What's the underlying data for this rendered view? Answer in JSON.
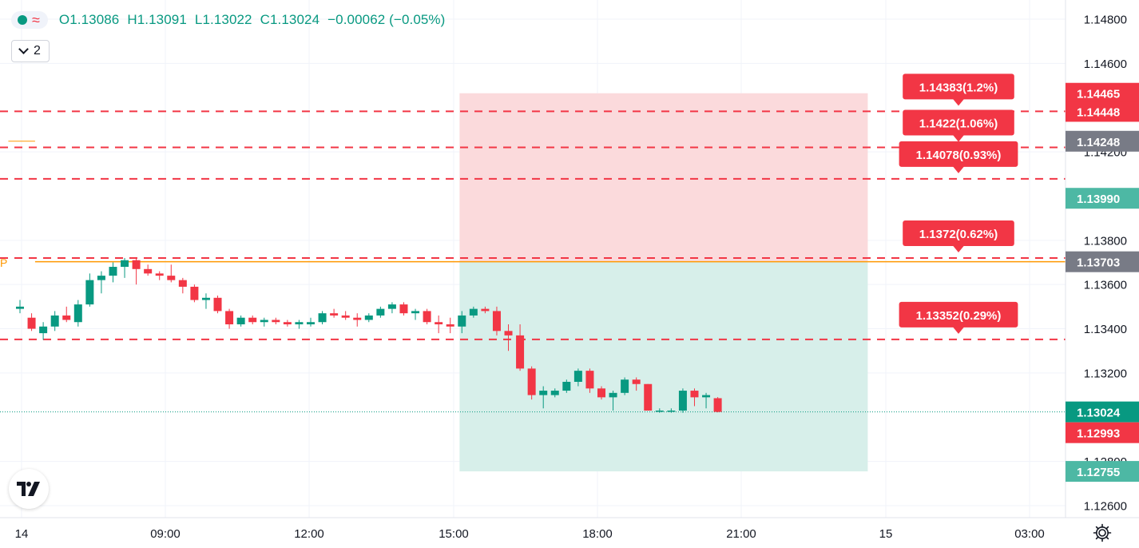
{
  "legend": {
    "open": "O1.13086",
    "high": "H1.13091",
    "low": "L1.13022",
    "close": "C1.13024",
    "change": "−0.00062 (−0.05%)",
    "collapse_count": "2"
  },
  "p_marker": "P",
  "colors": {
    "up": "#089981",
    "down": "#f23645",
    "orange": "#ff9800",
    "stop_zone": "#fbdadc",
    "target_zone": "#d7efea",
    "grid": "#f0f3fa",
    "gray_label": "#787b86"
  },
  "chart_data": {
    "type": "candlestick",
    "y_range": [
      1.1255,
      1.1485
    ],
    "y_ticks": [
      "1.12600",
      "1.12800",
      "1.13200",
      "1.13400",
      "1.13600",
      "1.13800",
      "1.14200",
      "1.14600",
      "1.14800"
    ],
    "x_ticks": [
      "14",
      "09:00",
      "12:00",
      "15:00",
      "18:00",
      "21:00",
      "15",
      "03:00"
    ],
    "candles": [
      [
        1.1349,
        1.1353,
        1.1347,
        1.135
      ],
      [
        1.1345,
        1.1347,
        1.1339,
        1.134
      ],
      [
        1.1338,
        1.1343,
        1.1335,
        1.1341
      ],
      [
        1.1341,
        1.1348,
        1.1339,
        1.1346
      ],
      [
        1.1346,
        1.135,
        1.1343,
        1.1344
      ],
      [
        1.1343,
        1.1353,
        1.1341,
        1.1351
      ],
      [
        1.1351,
        1.1365,
        1.135,
        1.1362
      ],
      [
        1.1362,
        1.1366,
        1.1356,
        1.1364
      ],
      [
        1.1364,
        1.137,
        1.1361,
        1.1368
      ],
      [
        1.1368,
        1.1372,
        1.1363,
        1.1371
      ],
      [
        1.1371,
        1.1372,
        1.136,
        1.1367
      ],
      [
        1.1367,
        1.1369,
        1.1364,
        1.1365
      ],
      [
        1.1365,
        1.1366,
        1.1362,
        1.1364
      ],
      [
        1.1364,
        1.1369,
        1.1361,
        1.1362
      ],
      [
        1.1362,
        1.1363,
        1.1356,
        1.1359
      ],
      [
        1.1359,
        1.136,
        1.1352,
        1.1353
      ],
      [
        1.1353,
        1.1356,
        1.1349,
        1.1354
      ],
      [
        1.1354,
        1.1355,
        1.1347,
        1.1348
      ],
      [
        1.1348,
        1.1349,
        1.134,
        1.1342
      ],
      [
        1.1342,
        1.1346,
        1.1341,
        1.1345
      ],
      [
        1.1345,
        1.1346,
        1.1342,
        1.1343
      ],
      [
        1.1343,
        1.1345,
        1.1341,
        1.1344
      ],
      [
        1.1344,
        1.1345,
        1.1342,
        1.1343
      ],
      [
        1.1343,
        1.1344,
        1.1341,
        1.1342
      ],
      [
        1.1342,
        1.1344,
        1.134,
        1.1343
      ],
      [
        1.1342,
        1.1345,
        1.1341,
        1.1343
      ],
      [
        1.1343,
        1.1348,
        1.1342,
        1.1347
      ],
      [
        1.1347,
        1.1349,
        1.1345,
        1.1346
      ],
      [
        1.1346,
        1.1348,
        1.1344,
        1.1345
      ],
      [
        1.1345,
        1.1347,
        1.1341,
        1.1344
      ],
      [
        1.1344,
        1.1347,
        1.1343,
        1.1346
      ],
      [
        1.1346,
        1.135,
        1.1345,
        1.1349
      ],
      [
        1.1349,
        1.1352,
        1.1347,
        1.1351
      ],
      [
        1.1351,
        1.1352,
        1.1346,
        1.1347
      ],
      [
        1.1347,
        1.1349,
        1.1344,
        1.1348
      ],
      [
        1.1348,
        1.1349,
        1.1342,
        1.1343
      ],
      [
        1.1343,
        1.1346,
        1.1338,
        1.1342
      ],
      [
        1.1342,
        1.1345,
        1.1338,
        1.1341
      ],
      [
        1.1341,
        1.1348,
        1.1338,
        1.1346
      ],
      [
        1.1346,
        1.135,
        1.1345,
        1.1349
      ],
      [
        1.1349,
        1.135,
        1.1347,
        1.1348
      ],
      [
        1.1348,
        1.135,
        1.1337,
        1.1339
      ],
      [
        1.1339,
        1.1342,
        1.133,
        1.1337
      ],
      [
        1.1337,
        1.1342,
        1.1321,
        1.1322
      ],
      [
        1.1322,
        1.1323,
        1.1308,
        1.131
      ],
      [
        1.131,
        1.1314,
        1.1304,
        1.1312
      ],
      [
        1.131,
        1.1313,
        1.1309,
        1.1312
      ],
      [
        1.1312,
        1.1317,
        1.1311,
        1.1316
      ],
      [
        1.1316,
        1.1322,
        1.1314,
        1.1321
      ],
      [
        1.1321,
        1.1322,
        1.1311,
        1.1313
      ],
      [
        1.1313,
        1.1314,
        1.1308,
        1.1309
      ],
      [
        1.1309,
        1.1312,
        1.1303,
        1.1311
      ],
      [
        1.1311,
        1.1318,
        1.131,
        1.1317
      ],
      [
        1.1317,
        1.1318,
        1.1312,
        1.1315
      ],
      [
        1.1315,
        1.1315,
        1.1303,
        1.1303
      ],
      [
        1.1303,
        1.1304,
        1.1302,
        1.1303
      ],
      [
        1.1303,
        1.1304,
        1.1302,
        1.1303
      ],
      [
        1.1303,
        1.1313,
        1.1302,
        1.1312
      ],
      [
        1.1312,
        1.1313,
        1.1305,
        1.1309
      ],
      [
        1.1309,
        1.1311,
        1.1304,
        1.131
      ],
      [
        1.13086,
        1.13091,
        1.13022,
        1.13024
      ]
    ],
    "position": {
      "entry": 1.13703,
      "stop": 1.14465,
      "target": 1.12755,
      "start_candle": 37.8,
      "end_candle": 72.9
    },
    "orange_lines": [
      {
        "price": 1.14248,
        "from": -1,
        "to": 1.3,
        "width": 1
      },
      {
        "price": 1.13703,
        "from": 1.3,
        "to": 100,
        "width": 1.5
      }
    ],
    "last_price": 1.13024,
    "alerts": [
      {
        "price": 1.14383,
        "text": "1.14383(1.2%)"
      },
      {
        "price": 1.1422,
        "text": "1.1422(1.06%)"
      },
      {
        "price": 1.14078,
        "text": "1.14078(0.93%)"
      },
      {
        "price": 1.1372,
        "text": "1.1372(0.62%)"
      },
      {
        "price": 1.13352,
        "text": "1.13352(0.29%)"
      }
    ],
    "price_labels": [
      {
        "text": "1.14465",
        "price": 1.14465,
        "color": "#f23645"
      },
      {
        "text": "1.14448",
        "price": 1.14383,
        "color": "#f23645"
      },
      {
        "text": "1.14248",
        "price": 1.14248,
        "color": "#787b86"
      },
      {
        "text": "1.13990",
        "price": 1.1399,
        "color": "#4db8a4"
      },
      {
        "text": "1.13703",
        "price": 1.13703,
        "color": "#787b86"
      },
      {
        "text": "1.13024",
        "price": 1.13024,
        "color": "#089981"
      },
      {
        "text": "1.12993",
        "price": 1.1293,
        "color": "#f23645"
      },
      {
        "text": "1.12755",
        "price": 1.12755,
        "color": "#4db8a4"
      }
    ]
  }
}
